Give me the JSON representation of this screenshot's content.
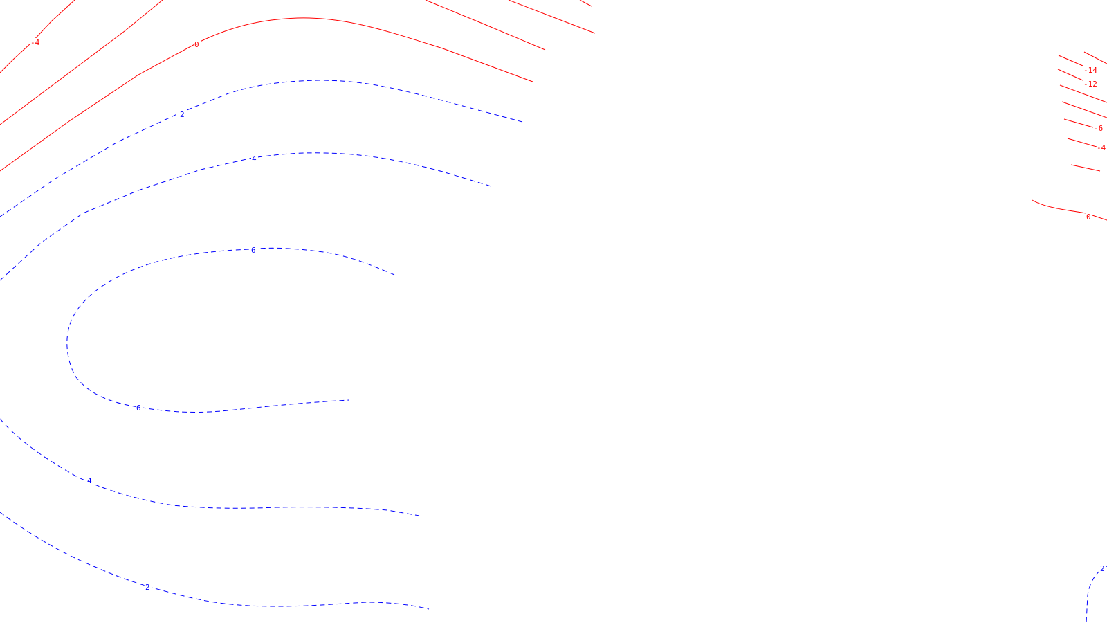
{
  "contour_labels": {
    "left_neg_4": "-4",
    "left_zero": "0",
    "left_pos_2_upper": "2",
    "left_pos_4_upper": "4",
    "left_pos_6_upper": "6",
    "left_pos_6_lower": "6",
    "left_pos_4_lower": "4",
    "left_pos_2_lower": "2",
    "right_neg_14": "-14",
    "right_neg_12": "-12",
    "right_neg_6": "-6",
    "right_neg_4": "-4",
    "right_zero": "0",
    "right_pos_2": "2"
  },
  "colors": {
    "negative_contour": "#ff0000",
    "positive_contour": "#0000ff",
    "background": "#ffffff"
  },
  "line_styles": {
    "negative": "solid",
    "positive": "dashed"
  }
}
